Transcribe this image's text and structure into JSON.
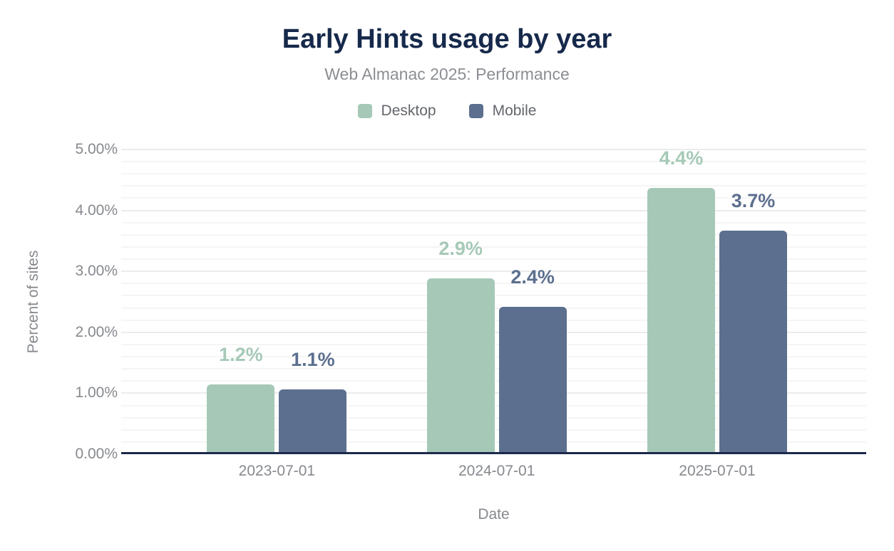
{
  "chart_data": {
    "type": "bar",
    "title": "Early Hints usage by year",
    "subtitle": "Web Almanac 2025: Performance",
    "xlabel": "Date",
    "ylabel": "Percent of sites",
    "categories": [
      "2023-07-01",
      "2024-07-01",
      "2025-07-01"
    ],
    "series": [
      {
        "name": "Desktop",
        "color": "#a6c9b7",
        "values": [
          1.15,
          2.89,
          4.37
        ],
        "labels": [
          "1.2%",
          "2.9%",
          "4.4%"
        ]
      },
      {
        "name": "Mobile",
        "color": "#5c6f8f",
        "values": [
          1.06,
          2.42,
          3.67
        ],
        "labels": [
          "1.1%",
          "2.4%",
          "3.7%"
        ]
      }
    ],
    "ylim": [
      0,
      5
    ],
    "yticks": [
      "0.00%",
      "1.00%",
      "2.00%",
      "3.00%",
      "4.00%",
      "5.00%"
    ],
    "ytick_step": 1,
    "minor_step": 0.2,
    "grid": true,
    "legend_position": "top"
  },
  "colors": {
    "title": "#16294b",
    "subtitle": "#8b8e93",
    "axis_text": "#86898e",
    "legend_text": "#63666b",
    "axis_line": "#1b2a4a",
    "gridline_major": "#ebebeb",
    "gridline_minor": "#f5f5f5",
    "background": "#ffffff"
  }
}
